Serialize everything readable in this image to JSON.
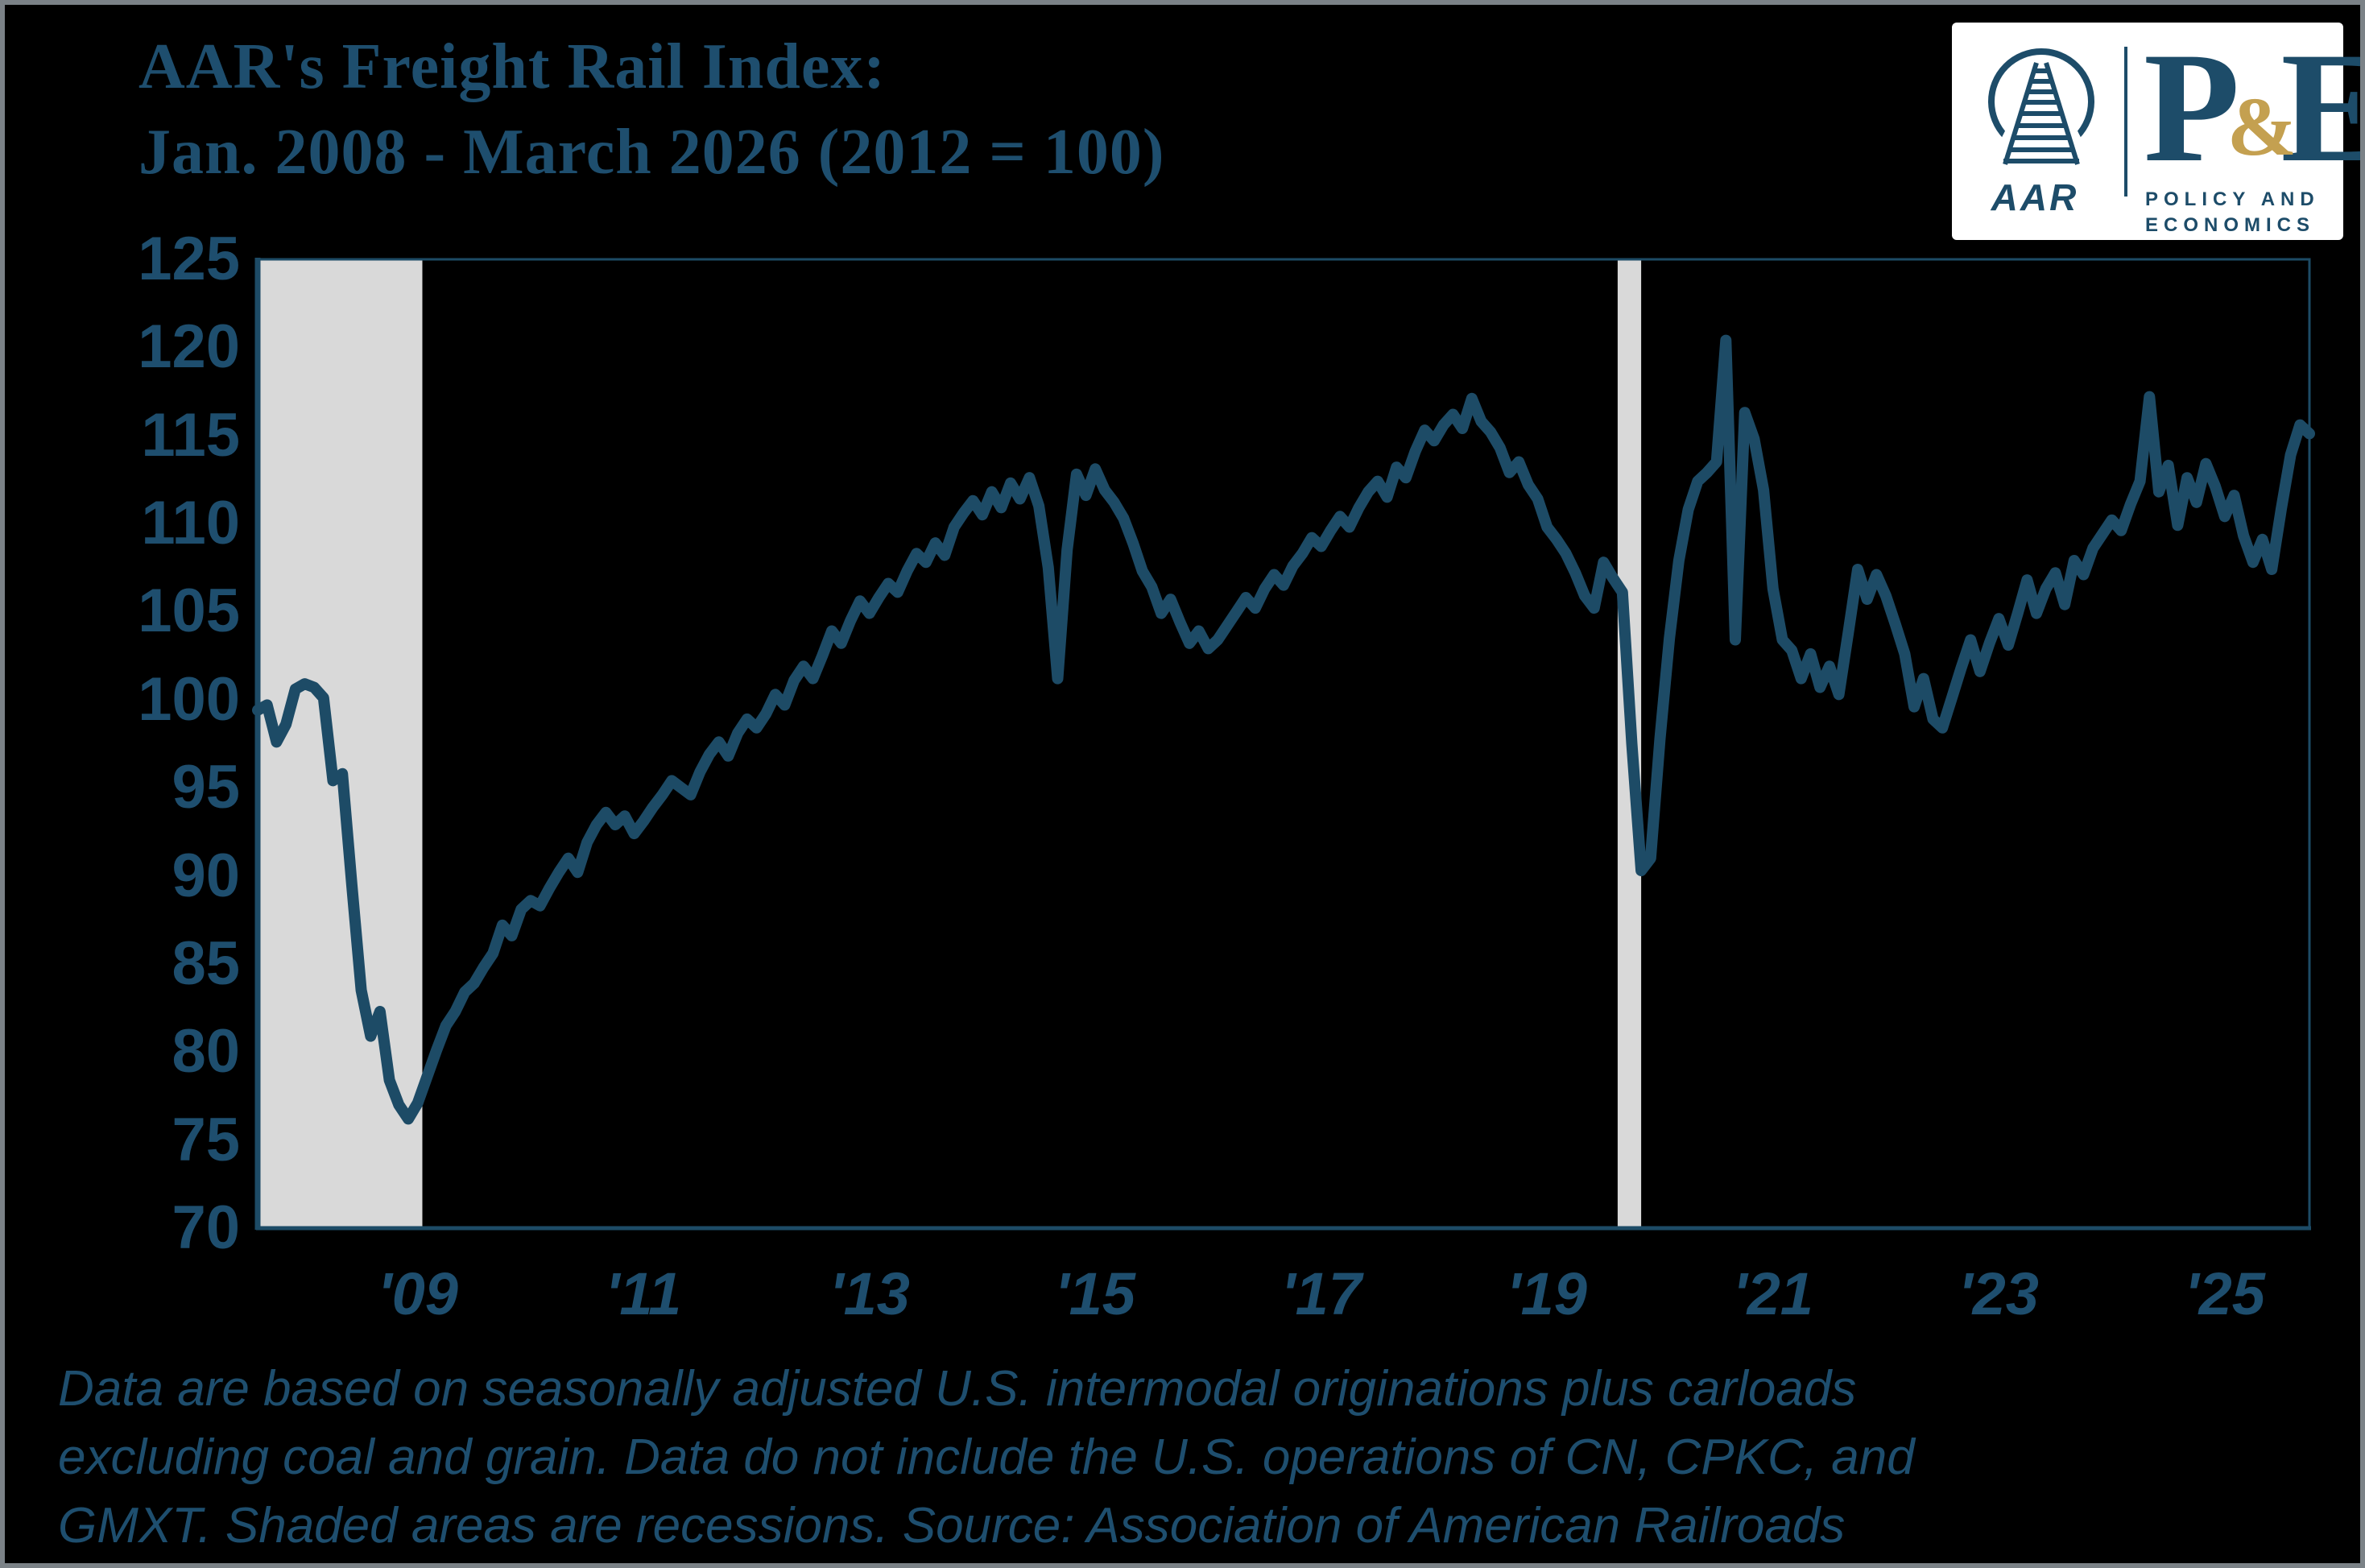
{
  "title": {
    "line1": "AAR's Freight Rail Index:",
    "line2": "Jan. 2008 - March 2026 (2012 = 100)"
  },
  "logo": {
    "aar": "AAR",
    "pe_p": "P",
    "pe_amp": "&",
    "pe_e": "E",
    "sub1": "POLICY AND",
    "sub2": "ECONOMICS",
    "navy": "#1d4c69",
    "gold": "#c4a050"
  },
  "footnote": {
    "line1": "Data are based on seasonally adjusted U.S. intermodal originations plus carloads",
    "line2": "excluding coal and grain. Data do not include the U.S. operations of CN, CPKC, and",
    "line3": "GMXT. Shaded areas are recessions. Source: Association of American Railroads"
  },
  "chart_data": {
    "type": "line",
    "title": "AAR's Freight Rail Index: Jan. 2008 - March 2026 (2012 = 100)",
    "x_start": "2008-01",
    "x_end": "2026-03",
    "frequency": "monthly",
    "ylim": [
      70,
      125
    ],
    "y_ticks": [
      70,
      75,
      80,
      85,
      90,
      95,
      100,
      105,
      110,
      115,
      120,
      125
    ],
    "x_ticks": [
      {
        "month_index": 12,
        "label": "'09"
      },
      {
        "month_index": 36,
        "label": "'11"
      },
      {
        "month_index": 60,
        "label": "'13"
      },
      {
        "month_index": 84,
        "label": "'15"
      },
      {
        "month_index": 108,
        "label": "'17"
      },
      {
        "month_index": 132,
        "label": "'19"
      },
      {
        "month_index": 156,
        "label": "'21"
      },
      {
        "month_index": 180,
        "label": "'23"
      },
      {
        "month_index": 204,
        "label": "'25"
      }
    ],
    "recessions": [
      {
        "label": "2008-09 recession",
        "start_month_index": 0,
        "end_month_index": 17.5
      },
      {
        "label": "2020 recession",
        "start_month_index": 144.5,
        "end_month_index": 147
      }
    ],
    "series": [
      {
        "name": "AAR Freight Rail Index (2012 = 100)",
        "values": [
          99.4,
          99.7,
          97.6,
          98.6,
          100.6,
          100.9,
          100.7,
          100.1,
          95.4,
          95.8,
          89.5,
          83.5,
          80.9,
          82.3,
          78.4,
          77.0,
          76.2,
          77.1,
          78.6,
          80.1,
          81.5,
          82.3,
          83.4,
          83.9,
          84.8,
          85.6,
          87.2,
          86.6,
          88.1,
          88.6,
          88.3,
          89.3,
          90.2,
          91.0,
          90.2,
          91.9,
          92.9,
          93.6,
          92.9,
          93.4,
          92.4,
          93.1,
          93.9,
          94.6,
          95.4,
          95.0,
          94.6,
          95.9,
          96.9,
          97.6,
          96.8,
          98.1,
          98.9,
          98.4,
          99.2,
          100.3,
          99.7,
          101.1,
          101.9,
          101.2,
          102.5,
          103.9,
          103.2,
          104.5,
          105.6,
          104.9,
          105.8,
          106.6,
          106.1,
          107.3,
          108.3,
          107.8,
          108.9,
          108.2,
          109.8,
          110.6,
          111.3,
          110.5,
          111.8,
          110.9,
          112.3,
          111.4,
          112.6,
          111.0,
          107.5,
          101.2,
          108.5,
          112.8,
          111.6,
          113.1,
          111.9,
          111.2,
          110.3,
          108.9,
          107.3,
          106.4,
          104.9,
          105.7,
          104.4,
          103.2,
          103.9,
          102.9,
          103.4,
          104.2,
          105.0,
          105.8,
          105.2,
          106.3,
          107.1,
          106.5,
          107.6,
          108.3,
          109.2,
          108.7,
          109.6,
          110.4,
          109.8,
          110.9,
          111.8,
          112.4,
          111.5,
          113.2,
          112.6,
          114.1,
          115.3,
          114.7,
          115.6,
          116.2,
          115.4,
          117.1,
          115.8,
          115.2,
          114.3,
          112.9,
          113.5,
          112.2,
          111.4,
          109.8,
          109.1,
          108.3,
          107.2,
          105.9,
          105.2,
          107.8,
          106.9,
          106.1,
          97.5,
          90.3,
          91.0,
          97.8,
          103.5,
          107.9,
          110.8,
          112.4,
          112.9,
          113.5,
          120.4,
          103.4,
          116.3,
          114.8,
          111.9,
          106.3,
          103.4,
          102.8,
          101.2,
          102.6,
          100.7,
          101.9,
          100.3,
          103.8,
          107.4,
          105.7,
          107.1,
          105.9,
          104.3,
          102.6,
          99.6,
          101.2,
          98.9,
          98.4,
          100.1,
          101.8,
          103.4,
          101.6,
          103.2,
          104.6,
          103.1,
          104.9,
          106.8,
          104.9,
          106.3,
          107.2,
          105.4,
          107.9,
          107.1,
          108.6,
          109.4,
          110.2,
          109.6,
          111.1,
          112.4,
          117.2,
          111.8,
          113.3,
          109.9,
          112.6,
          111.2,
          113.4,
          112.1,
          110.4,
          111.6,
          109.3,
          107.8,
          109.1,
          107.4,
          110.8,
          113.9,
          115.6,
          115.1
        ]
      }
    ],
    "colors": {
      "line": "#1d4b66",
      "recession_band": "#d9d9d9",
      "axis": "#1d4b66",
      "labels": "#1e4e6e",
      "background": "#000000",
      "frame": "#7b8287"
    },
    "grid": false,
    "legend": "none"
  }
}
